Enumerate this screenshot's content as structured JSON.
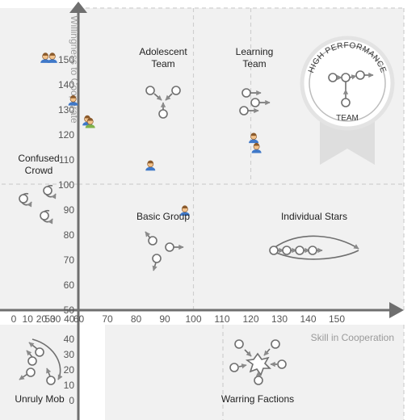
{
  "chart_data": {
    "type": "scatter",
    "title": "",
    "xlabel": "Skill in Cooperation",
    "ylabel": "Willingness to Cooperate",
    "xlim": [
      0,
      150
    ],
    "ylim": [
      0,
      150
    ],
    "x_ticks": [
      0,
      10,
      20,
      30,
      40,
      50,
      60,
      70,
      80,
      90,
      100,
      110,
      120,
      130,
      140,
      150
    ],
    "y_ticks": [
      0,
      10,
      20,
      30,
      40,
      50,
      60,
      70,
      80,
      90,
      100,
      110,
      120,
      130,
      140,
      150
    ],
    "grid": true,
    "thresholds": {
      "x": [
        100,
        120
      ],
      "y": [
        100
      ]
    },
    "zones": [
      {
        "label": "Adolescent\nTeam"
      },
      {
        "label": "Learning\nTeam"
      },
      {
        "label": "High Performance"
      },
      {
        "label": "Team"
      },
      {
        "label": "Confused\nCrowd"
      },
      {
        "label": "Basic Group"
      },
      {
        "label": "Individual Stars"
      },
      {
        "label": "Unruly Mob"
      },
      {
        "label": "Warring Factions"
      }
    ],
    "series": [
      {
        "points": [
          {
            "x": 10,
            "y": 151
          },
          {
            "x": 15,
            "y": 151
          },
          {
            "x": 30,
            "y": 134
          },
          {
            "x": 63,
            "y": 126
          },
          {
            "x": 64,
            "y": 125
          },
          {
            "x": 85,
            "y": 108
          },
          {
            "x": 97,
            "y": 90
          },
          {
            "x": 121,
            "y": 119
          },
          {
            "x": 122,
            "y": 115
          }
        ]
      }
    ]
  }
}
